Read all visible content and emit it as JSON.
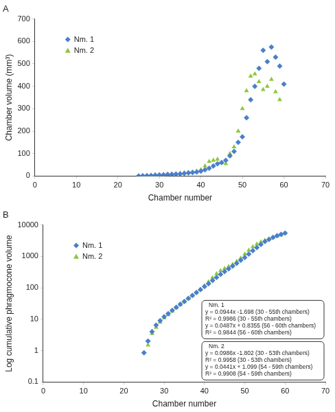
{
  "chart_data": [
    {
      "type": "scatter",
      "title": "A",
      "x_label": "Chamber number",
      "y_label": "Chamber volume (mm³)",
      "xlim": [
        0,
        70
      ],
      "xticks": [
        0,
        10,
        20,
        30,
        40,
        50,
        60,
        70
      ],
      "ylim": [
        0,
        700
      ],
      "yticks": [
        0,
        100,
        200,
        300,
        400,
        500,
        600,
        700
      ],
      "grid": false,
      "legend": "upper left",
      "series": [
        {
          "name": "Nm. 1",
          "color": "#4a7fcb",
          "marker": "diamond",
          "x": [
            25,
            26,
            27,
            28,
            29,
            30,
            31,
            32,
            33,
            34,
            35,
            36,
            37,
            38,
            39,
            40,
            41,
            42,
            43,
            44,
            45,
            46,
            47,
            48,
            49,
            50,
            51,
            52,
            53,
            54,
            55,
            56,
            57,
            58,
            59,
            60
          ],
          "values": [
            0.5,
            1,
            2,
            3,
            4,
            5,
            6,
            7,
            8,
            9,
            10,
            12,
            14,
            16,
            18,
            22,
            28,
            35,
            45,
            55,
            60,
            70,
            90,
            110,
            150,
            175,
            260,
            340,
            400,
            480,
            560,
            510,
            575,
            530,
            490,
            410
          ]
        },
        {
          "name": "Nm. 2",
          "color": "#8dc63f",
          "marker": "triangle",
          "x": [
            26,
            27,
            28,
            29,
            30,
            31,
            32,
            33,
            34,
            35,
            36,
            37,
            38,
            39,
            40,
            41,
            42,
            43,
            44,
            45,
            46,
            47,
            48,
            49,
            50,
            51,
            52,
            53,
            54,
            55,
            56,
            57,
            58,
            59
          ],
          "values": [
            1,
            2,
            3,
            4,
            5,
            6,
            7,
            9,
            10,
            12,
            14,
            16,
            18,
            22,
            28,
            45,
            65,
            70,
            75,
            60,
            55,
            100,
            130,
            200,
            300,
            380,
            445,
            455,
            420,
            385,
            400,
            430,
            375,
            340
          ]
        }
      ]
    },
    {
      "type": "scatter",
      "title": "B",
      "x_label": "Chamber number",
      "y_label": "Log cumulative phragmocone volume",
      "log": "y",
      "xlim": [
        0,
        70
      ],
      "xticks": [
        0,
        10,
        20,
        30,
        40,
        50,
        60,
        70
      ],
      "ylim": [
        0.1,
        10000
      ],
      "yticks": [
        0.1,
        1,
        10,
        100,
        1000,
        10000
      ],
      "grid": false,
      "legend": "upper left",
      "series": [
        {
          "name": "Nm. 1",
          "color": "#4a7fcb",
          "marker": "diamond",
          "x": [
            25,
            26,
            27,
            28,
            29,
            30,
            31,
            32,
            33,
            34,
            35,
            36,
            37,
            38,
            39,
            40,
            41,
            42,
            43,
            44,
            45,
            46,
            47,
            48,
            49,
            50,
            51,
            52,
            53,
            54,
            55,
            56,
            57,
            58,
            59,
            60
          ],
          "values": [
            0.85,
            2,
            4,
            6.5,
            9,
            12,
            15,
            19,
            24,
            30,
            37,
            46,
            57,
            71,
            88,
            110,
            135,
            170,
            215,
            270,
            330,
            400,
            490,
            600,
            750,
            920,
            1180,
            1520,
            1900,
            2400,
            2950,
            3450,
            4000,
            4550,
            5050,
            5500
          ]
        },
        {
          "name": "Nm. 2",
          "color": "#8dc63f",
          "marker": "triangle",
          "x": [
            26,
            27,
            28,
            29,
            30,
            31,
            32,
            33,
            34,
            35,
            36,
            37,
            38,
            39,
            40,
            41,
            42,
            43,
            44,
            45,
            46,
            47,
            48,
            49,
            50,
            51,
            52,
            53,
            54,
            55,
            56,
            57,
            58,
            59
          ],
          "values": [
            1.5,
            3.5,
            5.5,
            8,
            11,
            14,
            18,
            23,
            29,
            36,
            45,
            56,
            70,
            88,
            115,
            155,
            210,
            280,
            350,
            410,
            470,
            560,
            690,
            880,
            1180,
            1560,
            2000,
            2450,
            2850,
            3250,
            3650,
            4050,
            4450,
            4800
          ]
        }
      ],
      "annotations": [
        {
          "title": "Nm. 1",
          "lines": [
            "y = 0.0944x -1.698 (30 - 55th chambers)",
            "R² = 0.9986 (30 - 55th chambers)",
            "y = 0.0487x + 0.8355 (56 - 60th chambers)",
            "R² = 0.9844 (56 - 60th chambers)"
          ]
        },
        {
          "title": "Nm. 2",
          "lines": [
            "y = 0.0986x -1.802 (30 - 53th chambers)",
            "R² = 0.9958 (30 - 53th chambers)",
            "y = 0.0441x + 1.099 (54 - 59th chambers)",
            "R² = 0.9908 (54 - 59th chambers)"
          ]
        }
      ]
    }
  ]
}
